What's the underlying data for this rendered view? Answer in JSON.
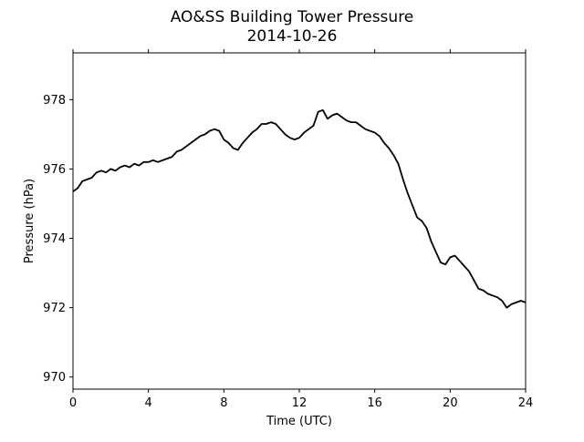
{
  "chart_data": {
    "type": "line",
    "title": "AO&SS Building Tower Pressure",
    "subtitle": "2014-10-26",
    "xlabel": "Time (UTC)",
    "ylabel": "Pressure (hPa)",
    "xlim": [
      0,
      24
    ],
    "ylim": [
      969.65,
      979.35
    ],
    "xticks": [
      0,
      4,
      8,
      12,
      16,
      20,
      24
    ],
    "yticks": [
      970,
      972,
      974,
      976,
      978
    ],
    "grid": false,
    "line_color": "#000000",
    "series": [
      {
        "x": [
          0,
          0.25,
          0.5,
          0.75,
          1.0,
          1.25,
          1.5,
          1.75,
          2.0,
          2.25,
          2.5,
          2.75,
          3.0,
          3.25,
          3.5,
          3.75,
          4.0,
          4.25,
          4.5,
          4.75,
          5.0,
          5.25,
          5.5,
          5.75,
          6.0,
          6.25,
          6.5,
          6.75,
          7.0,
          7.25,
          7.5,
          7.75,
          8.0,
          8.25,
          8.5,
          8.75,
          9.0,
          9.25,
          9.5,
          9.75,
          10.0,
          10.25,
          10.5,
          10.75,
          11.0,
          11.25,
          11.5,
          11.75,
          12.0,
          12.25,
          12.5,
          12.75,
          13.0,
          13.25,
          13.5,
          13.75,
          14.0,
          14.25,
          14.5,
          14.75,
          15.0,
          15.25,
          15.5,
          15.75,
          16.0,
          16.25,
          16.5,
          16.75,
          17.0,
          17.25,
          17.5,
          17.75,
          18.0,
          18.25,
          18.5,
          18.75,
          19.0,
          19.25,
          19.5,
          19.75,
          20.0,
          20.25,
          20.5,
          20.75,
          21.0,
          21.25,
          21.5,
          21.75,
          22.0,
          22.25,
          22.5,
          22.75,
          23.0,
          23.25,
          23.5,
          23.75,
          24.0
        ],
        "values": [
          975.35,
          975.45,
          975.65,
          975.7,
          975.75,
          975.9,
          975.95,
          975.9,
          976.0,
          975.95,
          976.05,
          976.1,
          976.05,
          976.15,
          976.1,
          976.2,
          976.2,
          976.25,
          976.2,
          976.25,
          976.3,
          976.35,
          976.5,
          976.55,
          976.65,
          976.75,
          976.85,
          976.95,
          977.0,
          977.1,
          977.15,
          977.1,
          976.85,
          976.75,
          976.6,
          976.55,
          976.75,
          976.9,
          977.05,
          977.15,
          977.3,
          977.3,
          977.35,
          977.3,
          977.15,
          977.0,
          976.9,
          976.85,
          976.9,
          977.05,
          977.15,
          977.25,
          977.65,
          977.7,
          977.45,
          977.55,
          977.6,
          977.5,
          977.4,
          977.35,
          977.35,
          977.25,
          977.15,
          977.1,
          977.05,
          976.95,
          976.75,
          976.6,
          976.4,
          976.15,
          975.7,
          975.3,
          974.95,
          974.6,
          974.5,
          974.3,
          973.9,
          973.6,
          973.3,
          973.25,
          973.45,
          973.5,
          973.35,
          973.2,
          973.05,
          972.8,
          972.55,
          972.5,
          972.4,
          972.35,
          972.3,
          972.2,
          972.0,
          972.1,
          972.15,
          972.2,
          972.15
        ]
      }
    ]
  }
}
